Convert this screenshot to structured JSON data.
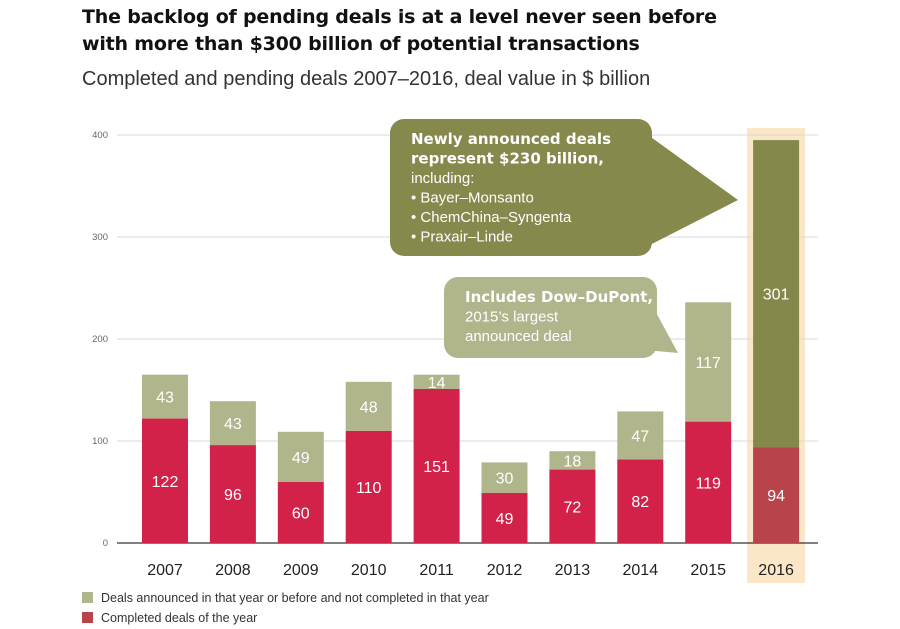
{
  "title_lines": [
    "The backlog of pending deals is at a level never seen before",
    "with more than $300 billion of potential transactions"
  ],
  "subtitle": "Completed and pending deals 2007–2016, deal value in $ billion",
  "legend": {
    "pending": "Deals announced in that year or before and not completed in that year",
    "completed": "Completed deals of the year"
  },
  "callouts": {
    "callout_2016": {
      "bold_lines": [
        "Newly announced deals",
        "represent $230 billion,"
      ],
      "lines": [
        "including:",
        "• Bayer–Monsanto",
        "• ChemChina–Syngenta",
        "• Praxair–Linde"
      ]
    },
    "callout_2015": {
      "bold_lines": [
        "Includes Dow–DuPont,"
      ],
      "lines": [
        "2015’s largest",
        "announced deal"
      ]
    }
  },
  "colors": {
    "completed": "#d3224a",
    "pending": "#b0b58c",
    "completed_highlight": "#b9434a",
    "pending_highlight": "#84884a",
    "callout_2016": "#85894c",
    "callout_2015": "#b0b58c",
    "highlight_band": "#fbe6c7"
  },
  "chart_data": {
    "type": "bar",
    "stacked": true,
    "categories": [
      "2007",
      "2008",
      "2009",
      "2010",
      "2011",
      "2012",
      "2013",
      "2014",
      "2015",
      "2016"
    ],
    "series": [
      {
        "name": "Completed deals of the year",
        "values": [
          122,
          96,
          60,
          110,
          151,
          49,
          72,
          82,
          119,
          94
        ]
      },
      {
        "name": "Deals announced in that year or before and not completed in that year",
        "values": [
          43,
          43,
          49,
          48,
          14,
          30,
          18,
          47,
          117,
          301
        ]
      }
    ],
    "yticks": [
      0,
      100,
      200,
      300,
      400
    ],
    "ylim": [
      0,
      400
    ],
    "highlight_category": "2016",
    "grid": true,
    "legend_position": "bottom-left"
  }
}
